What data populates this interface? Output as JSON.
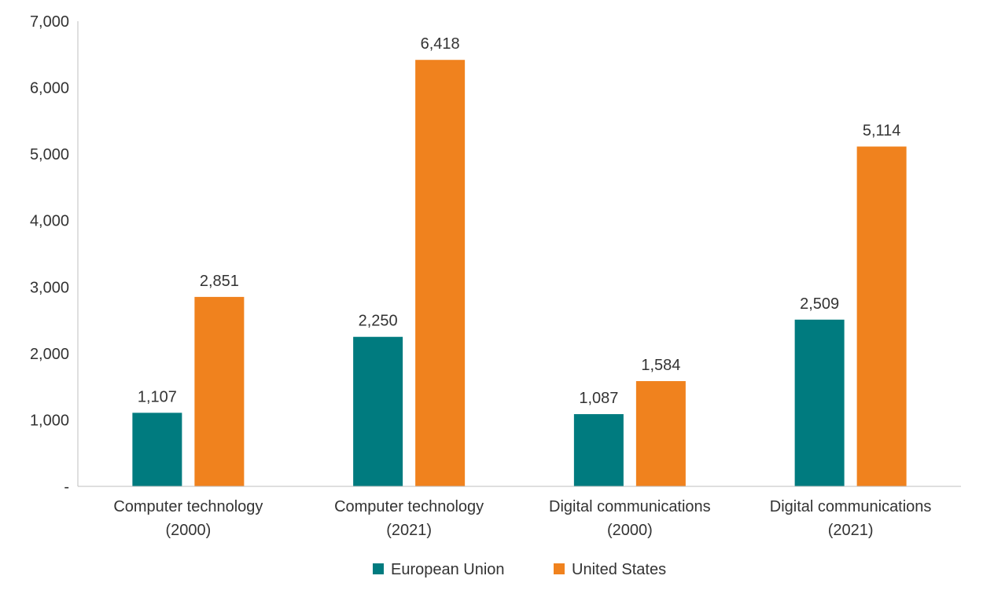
{
  "chart_data": {
    "type": "bar",
    "title": "",
    "xlabel": "",
    "ylabel": "",
    "categories": [
      [
        "Computer technology",
        "(2000)"
      ],
      [
        "Computer technology",
        "(2021)"
      ],
      [
        "Digital communications",
        "(2000)"
      ],
      [
        "Digital communications",
        "(2021)"
      ]
    ],
    "series": [
      {
        "name": "European Union",
        "color": "#007B7F",
        "values": [
          1107,
          2250,
          1087,
          2509
        ],
        "labels": [
          "1,107",
          "2,250",
          "1,087",
          "2,509"
        ]
      },
      {
        "name": "United States",
        "color": "#F0821E",
        "values": [
          2851,
          6418,
          1584,
          5114
        ],
        "labels": [
          "2,851",
          "6,418",
          "1,584",
          "5,114"
        ]
      }
    ],
    "ylim": [
      0,
      7000
    ],
    "yticks": [
      0,
      1000,
      2000,
      3000,
      4000,
      5000,
      6000,
      7000
    ],
    "ytick_labels": [
      "-",
      "1,000",
      "2,000",
      "3,000",
      "4,000",
      "5,000",
      "6,000",
      "7,000"
    ],
    "grid": false,
    "legend": "bottom-center"
  }
}
